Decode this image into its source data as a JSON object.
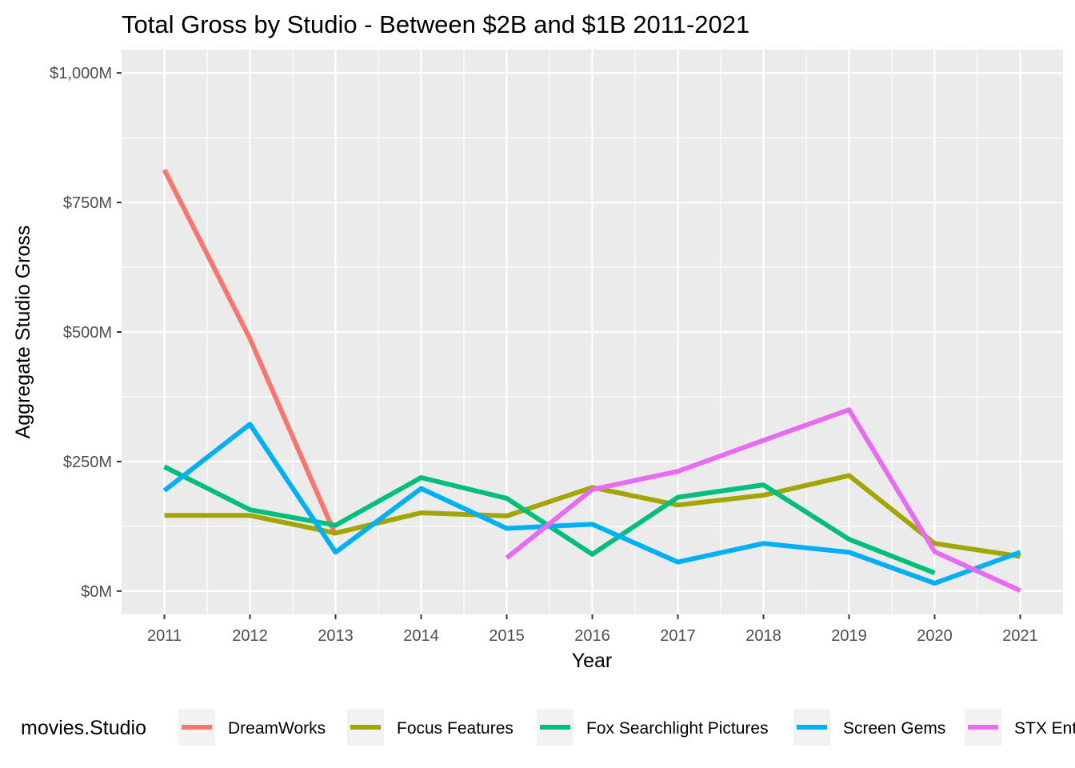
{
  "chart_data": {
    "type": "line",
    "title": "Total Gross by Studio - Between $2B and $1B 2011-2021",
    "xlabel": "Year",
    "ylabel": "Aggregate Studio Gross",
    "x": [
      2011,
      2012,
      2013,
      2014,
      2015,
      2016,
      2017,
      2018,
      2019,
      2020,
      2021
    ],
    "x_tick_labels": [
      "2011",
      "2012",
      "2013",
      "2014",
      "2015",
      "2016",
      "2017",
      "2018",
      "2019",
      "2020",
      "2021"
    ],
    "y_ticks": [
      0,
      250,
      500,
      750,
      1000
    ],
    "y_tick_labels": [
      "$0M",
      "$250M",
      "$500M",
      "$750M",
      "$1,000M"
    ],
    "y_unit": "millions of dollars",
    "xlim": [
      2010.5,
      2021.5
    ],
    "ylim": [
      -45,
      1045
    ],
    "grid": true,
    "legend_title": "movies.Studio",
    "legend_position": "bottom",
    "series": [
      {
        "name": "DreamWorks",
        "color": "#F8766D",
        "points": [
          [
            2011,
            813
          ],
          [
            2012,
            487
          ],
          [
            2013,
            108
          ]
        ]
      },
      {
        "name": "Focus Features",
        "color": "#A3A500",
        "points": [
          [
            2011,
            146
          ],
          [
            2012,
            146
          ],
          [
            2013,
            112
          ],
          [
            2014,
            151
          ],
          [
            2015,
            145
          ],
          [
            2016,
            200
          ],
          [
            2017,
            166
          ],
          [
            2018,
            185
          ],
          [
            2019,
            223
          ],
          [
            2020,
            92
          ],
          [
            2021,
            67
          ]
        ]
      },
      {
        "name": "Fox Searchlight Pictures",
        "color": "#00BF7D",
        "points": [
          [
            2011,
            240
          ],
          [
            2012,
            157
          ],
          [
            2013,
            127
          ],
          [
            2014,
            219
          ],
          [
            2015,
            179
          ],
          [
            2016,
            71
          ],
          [
            2017,
            181
          ],
          [
            2018,
            205
          ],
          [
            2019,
            100
          ],
          [
            2020,
            35
          ]
        ]
      },
      {
        "name": "Screen Gems",
        "color": "#00B0F6",
        "points": [
          [
            2011,
            194
          ],
          [
            2012,
            322
          ],
          [
            2013,
            75
          ],
          [
            2014,
            198
          ],
          [
            2015,
            121
          ],
          [
            2016,
            129
          ],
          [
            2017,
            56
          ],
          [
            2018,
            92
          ],
          [
            2019,
            75
          ],
          [
            2020,
            15
          ],
          [
            2021,
            75
          ]
        ]
      },
      {
        "name": "STX Ent",
        "color": "#E76BF3",
        "points": [
          [
            2015,
            64
          ],
          [
            2016,
            196
          ],
          [
            2017,
            231
          ],
          [
            2018,
            291
          ],
          [
            2019,
            350
          ],
          [
            2020,
            76
          ],
          [
            2021,
            1
          ]
        ]
      }
    ]
  }
}
